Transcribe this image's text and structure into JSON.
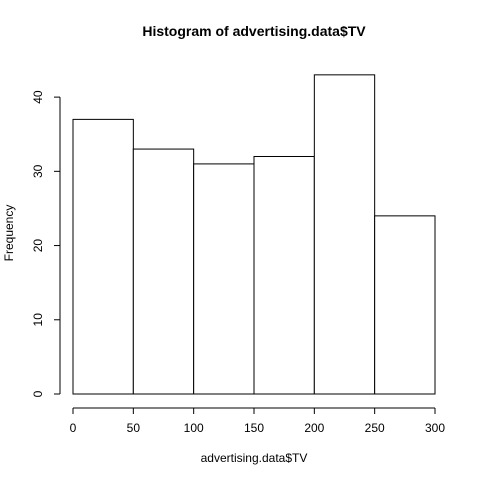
{
  "chart_data": {
    "type": "bar",
    "title": "Histogram of advertising.data$TV",
    "xlabel": "advertising.data$TV",
    "ylabel": "Frequency",
    "bins": [
      {
        "start": 0,
        "end": 50,
        "count": 37
      },
      {
        "start": 50,
        "end": 100,
        "count": 33
      },
      {
        "start": 100,
        "end": 150,
        "count": 31
      },
      {
        "start": 150,
        "end": 200,
        "count": 32
      },
      {
        "start": 200,
        "end": 250,
        "count": 43
      },
      {
        "start": 250,
        "end": 300,
        "count": 24
      }
    ],
    "xlim": [
      0,
      300
    ],
    "ylim": [
      0,
      45
    ],
    "x_ticks": [
      0,
      50,
      100,
      150,
      200,
      250,
      300
    ],
    "y_ticks": [
      0,
      10,
      20,
      30,
      40
    ],
    "grid": false,
    "legend": "none",
    "bar_fill": "#ffffff",
    "bar_stroke": "#000000"
  }
}
